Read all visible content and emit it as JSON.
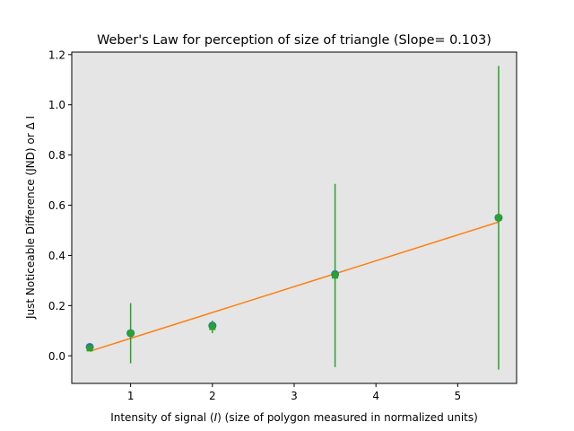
{
  "chart_data": {
    "type": "scatter",
    "title": "Weber's Law for perception of size of triangle (Slope= 0.103)",
    "xlabel_prefix": "Intensity of signal (",
    "xlabel_var": "I",
    "xlabel_suffix": ") (size of polygon measured in normalized units)",
    "ylabel": "Just Noticeable Difference (JND) or Δ I",
    "xlim": [
      0.28,
      5.72
    ],
    "ylim": [
      -0.11,
      1.21
    ],
    "xticks": [
      1,
      2,
      3,
      4,
      5
    ],
    "yticks": [
      0.0,
      0.2,
      0.4,
      0.6,
      0.8,
      1.0,
      1.2
    ],
    "xtick_labels": [
      "1",
      "2",
      "3",
      "4",
      "5"
    ],
    "ytick_labels": [
      "0.0",
      "0.2",
      "0.4",
      "0.6",
      "0.8",
      "1.0",
      "1.2"
    ],
    "background": "#e5e5e5",
    "points": {
      "x": [
        0.5,
        1.0,
        2.0,
        3.5,
        5.5
      ],
      "y": [
        0.035,
        0.09,
        0.12,
        0.325,
        0.55
      ],
      "color": "#1f77b4"
    },
    "error_bars": {
      "x": [
        0.5,
        1.0,
        2.0,
        3.5,
        5.5
      ],
      "y": [
        0.03,
        0.09,
        0.115,
        0.32,
        0.55
      ],
      "err": [
        0.005,
        0.12,
        0.025,
        0.365,
        0.605
      ],
      "color": "#2ca02c"
    },
    "fit_line": {
      "x": [
        0.5,
        5.5
      ],
      "y": [
        0.018,
        0.533
      ],
      "color": "#ff7f0e"
    }
  }
}
